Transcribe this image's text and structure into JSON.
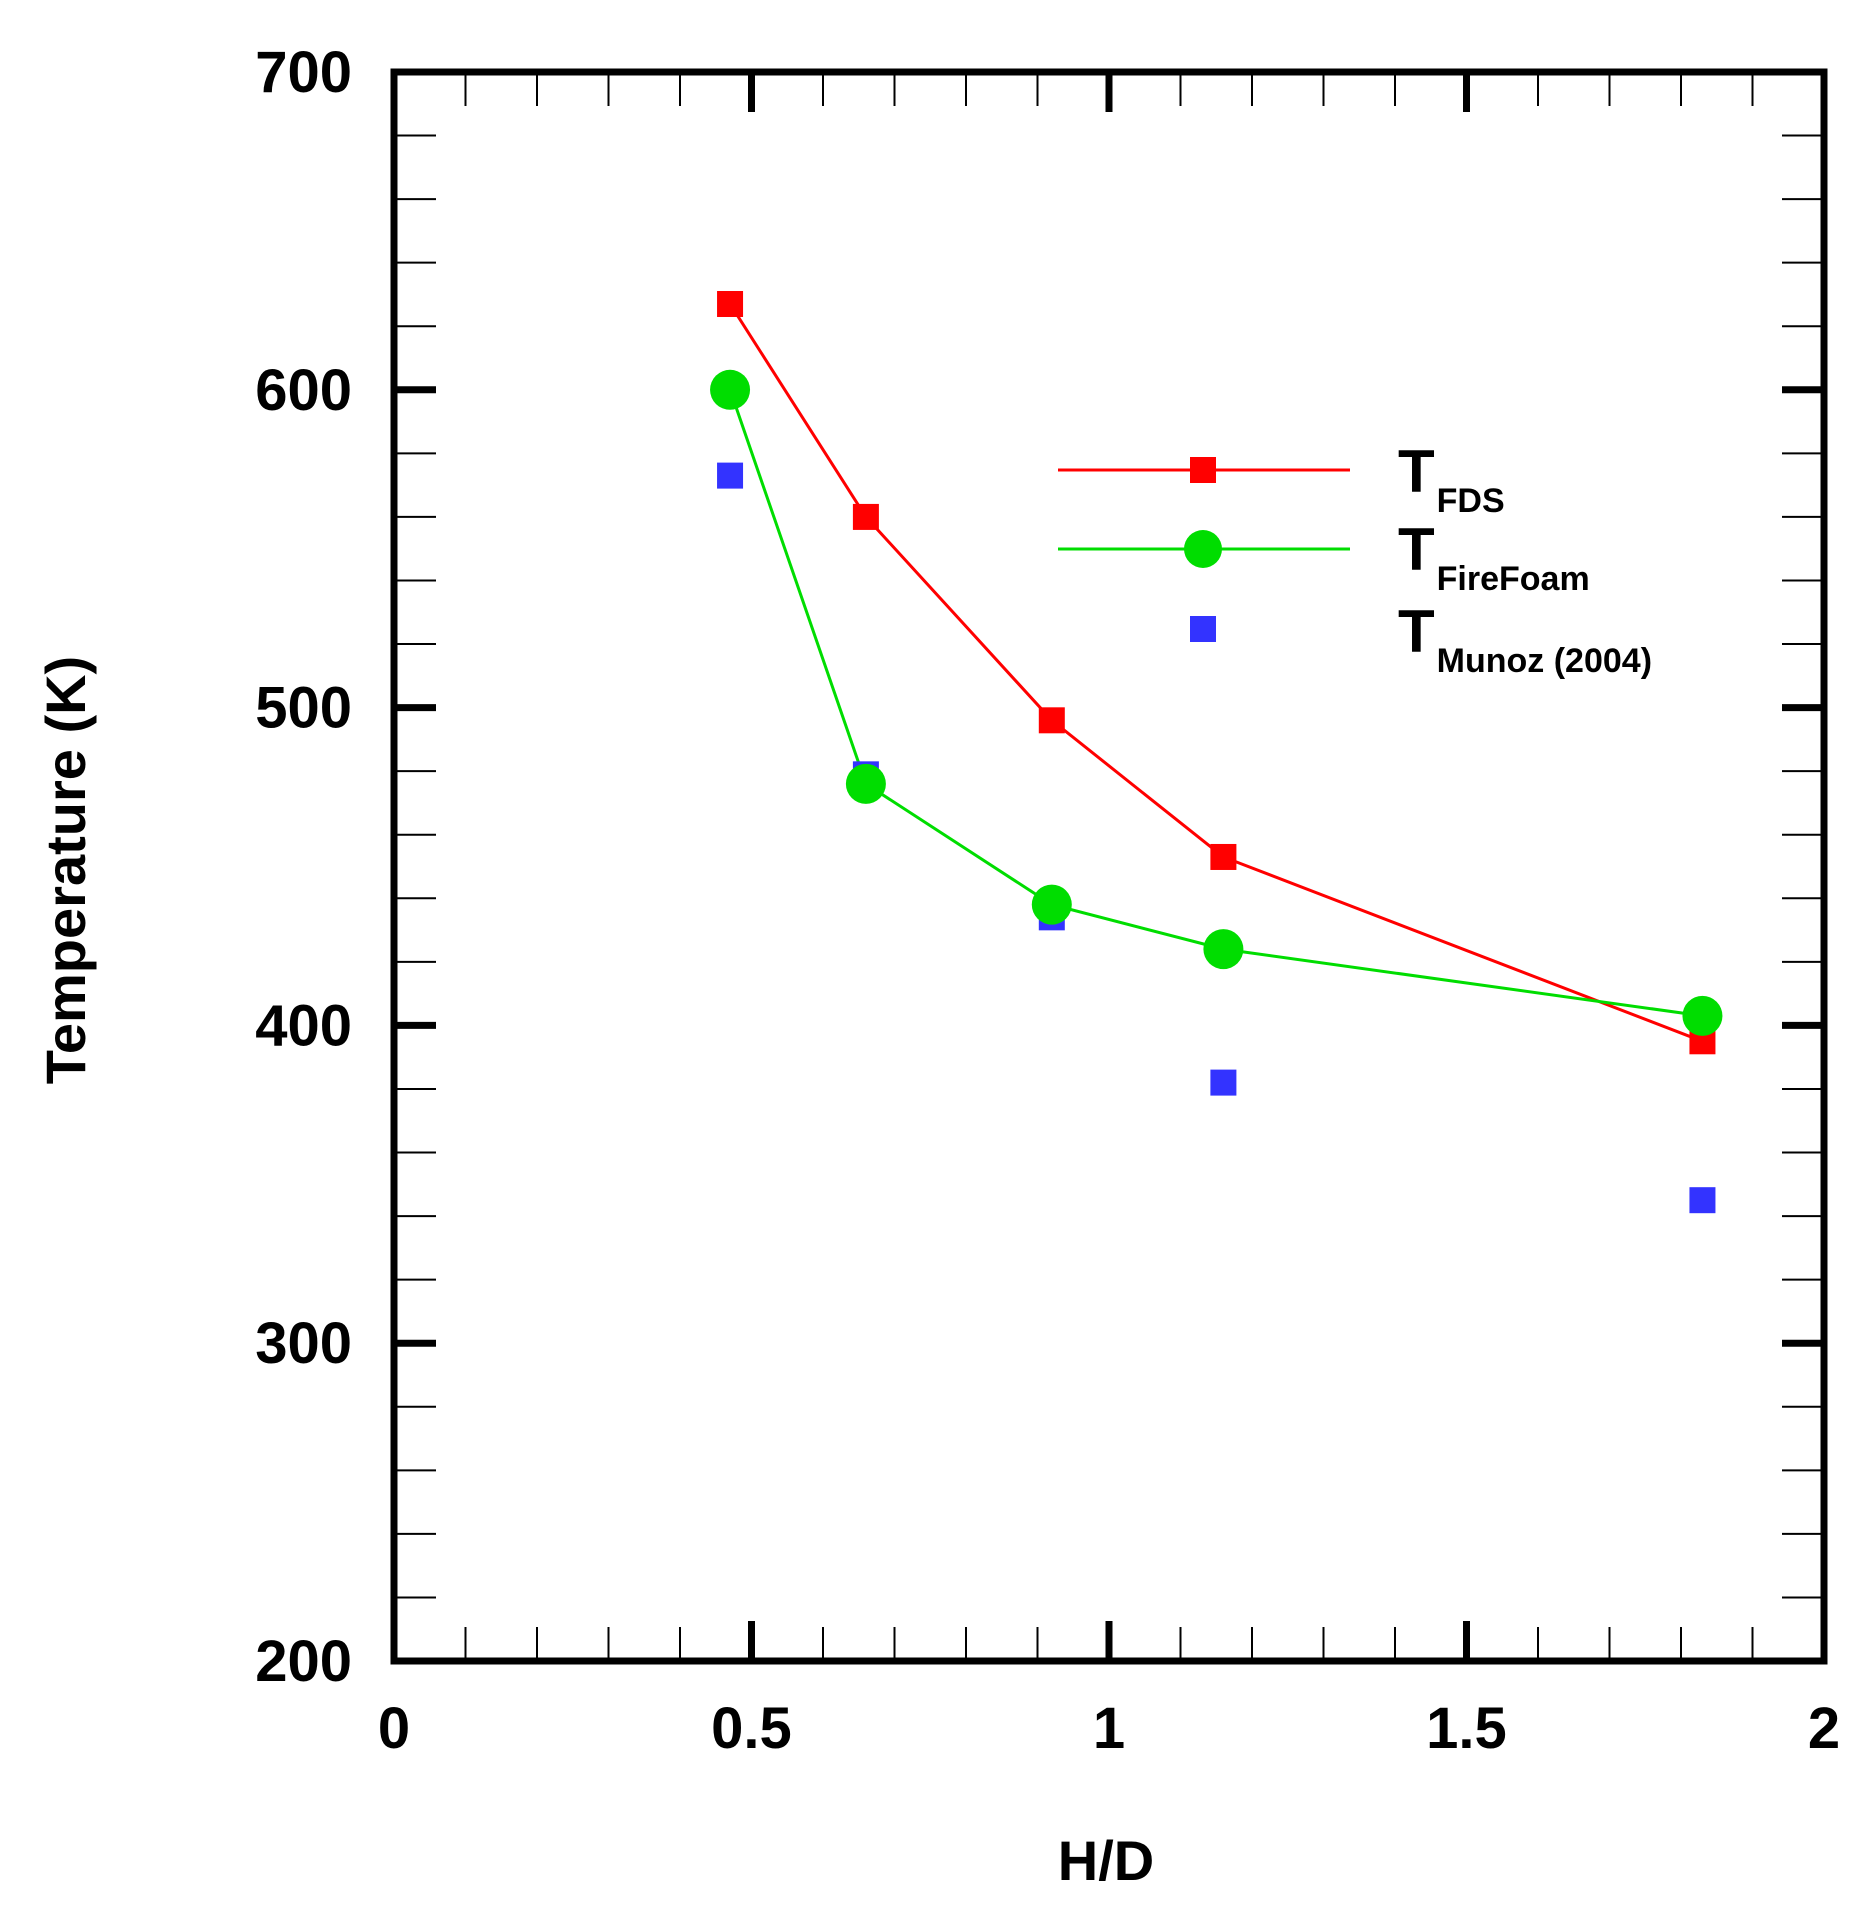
{
  "chart_data": {
    "type": "line",
    "title": "",
    "xlabel": "H/D",
    "ylabel": "Temperature (K)",
    "xlim": [
      0,
      2
    ],
    "ylim": [
      200,
      700
    ],
    "xticks": [
      0,
      0.5,
      1,
      1.5,
      2
    ],
    "xtick_labels": [
      "0",
      "0.5",
      "1",
      "1.5",
      "2"
    ],
    "yticks": [
      200,
      300,
      400,
      500,
      600,
      700
    ],
    "ytick_labels": [
      "200",
      "300",
      "400",
      "500",
      "600",
      "700"
    ],
    "x_minor_step": 0.1,
    "y_minor_step": 20,
    "grid": false,
    "legend_position": "upper-right",
    "series": [
      {
        "name": "T_FDS",
        "legend_main": "T",
        "legend_sub": "FDS",
        "color": "#ff0000",
        "marker": "square",
        "line": true,
        "x": [
          0.47,
          0.66,
          0.92,
          1.16,
          1.83
        ],
        "values": [
          627,
          560,
          496,
          453,
          395
        ]
      },
      {
        "name": "T_FireFoam",
        "legend_main": "T",
        "legend_sub": "FireFoam",
        "color": "#00dd00",
        "marker": "circle",
        "line": true,
        "x": [
          0.47,
          0.66,
          0.92,
          1.16,
          1.83
        ],
        "values": [
          600,
          476,
          438,
          424,
          403
        ]
      },
      {
        "name": "T_Munoz (2004)",
        "legend_main": "T",
        "legend_sub": "Munoz (2004)",
        "color": "#3333ff",
        "marker": "square",
        "line": false,
        "x": [
          0.47,
          0.66,
          0.92,
          1.16,
          1.83
        ],
        "values": [
          573,
          479,
          434,
          382,
          345
        ]
      }
    ]
  }
}
